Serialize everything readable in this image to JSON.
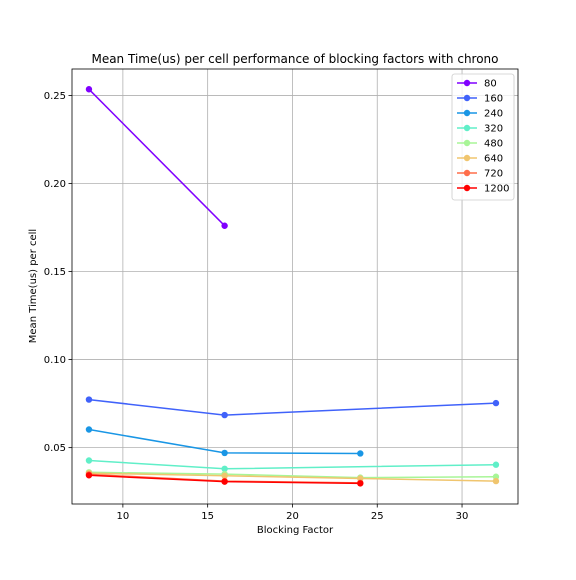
{
  "chart_data": {
    "type": "line",
    "title": "Mean Time(us) per cell performance of blocking factors with chrono",
    "xlabel": "Blocking Factor",
    "ylabel": "Mean Time(us) per cell",
    "xlim": [
      7,
      33.3
    ],
    "ylim": [
      0.018,
      0.265
    ],
    "xticks": [
      10,
      15,
      20,
      25,
      30
    ],
    "yticks": [
      0.05,
      0.1,
      0.15,
      0.2,
      0.25
    ],
    "xtick_labels": [
      "10",
      "15",
      "20",
      "25",
      "30"
    ],
    "ytick_labels": [
      "0.05",
      "0.10",
      "0.15",
      "0.20",
      "0.25"
    ],
    "grid": true,
    "legend_position": "top-right",
    "series": [
      {
        "name": "80",
        "color": "#8000ff",
        "x": [
          8,
          16
        ],
        "y": [
          0.2535,
          0.176
        ]
      },
      {
        "name": "160",
        "color": "#4062fa",
        "x": [
          8,
          16,
          32
        ],
        "y": [
          0.0773,
          0.0685,
          0.0753
        ]
      },
      {
        "name": "240",
        "color": "#1996e5",
        "x": [
          8,
          16,
          24
        ],
        "y": [
          0.0603,
          0.047,
          0.0467
        ]
      },
      {
        "name": "320",
        "color": "#60efc8",
        "x": [
          8,
          16,
          32
        ],
        "y": [
          0.0427,
          0.038,
          0.0403
        ]
      },
      {
        "name": "480",
        "color": "#a8f597",
        "x": [
          8,
          16,
          24,
          32
        ],
        "y": [
          0.036,
          0.035,
          0.033,
          0.0335
        ]
      },
      {
        "name": "640",
        "color": "#f0c56e",
        "x": [
          8,
          16,
          24,
          32
        ],
        "y": [
          0.0355,
          0.034,
          0.0325,
          0.031
        ]
      },
      {
        "name": "720",
        "color": "#ff6e4a",
        "x": [
          8,
          16,
          24
        ],
        "y": [
          0.0348,
          0.031,
          0.03
        ]
      },
      {
        "name": "1200",
        "color": "#ff0000",
        "x": [
          8,
          16,
          24
        ],
        "y": [
          0.0343,
          0.0307,
          0.0297
        ]
      }
    ]
  }
}
